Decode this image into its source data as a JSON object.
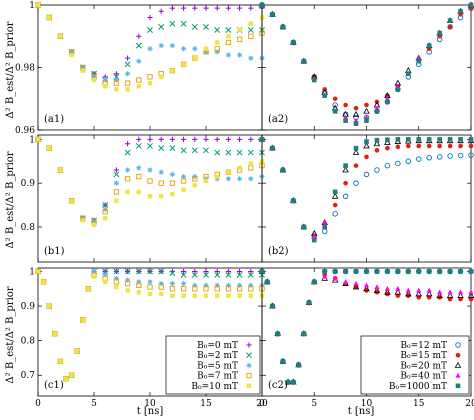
{
  "figure": {
    "ylabel": "Δ² B_est/Δ² B_prior",
    "xlabel": "t [ns]"
  },
  "x_tick_labels": [
    "0",
    "5",
    "10",
    "15",
    "20"
  ],
  "y_tick_labels": {
    "a": [
      "1",
      "0.98",
      "0.96"
    ],
    "b": [
      "1",
      "0.9",
      "0.8"
    ],
    "c": [
      "1",
      "0.9",
      "0.8",
      "0.7"
    ]
  },
  "legend_left": {
    "entries": [
      {
        "label": "B₀=0 mT",
        "marker": "plus",
        "color": "#9400d3"
      },
      {
        "label": "B₀=2 mT",
        "marker": "x",
        "color": "#009e73"
      },
      {
        "label": "B₀=5 mT",
        "marker": "star",
        "color": "#56b4e9"
      },
      {
        "label": "B₀=7 mT",
        "marker": "square-open",
        "color": "#e69f00"
      },
      {
        "label": "B₀=10 mT",
        "marker": "square-filled",
        "color": "#f0e442"
      }
    ]
  },
  "legend_right": {
    "entries": [
      {
        "label": "B₀=12 mT",
        "marker": "circle-open",
        "color": "#0072b2"
      },
      {
        "label": "B₀=15 mT",
        "marker": "circle-filled",
        "color": "#e51e10"
      },
      {
        "label": "B₀=20 mT",
        "marker": "triangle-open",
        "color": "#000000"
      },
      {
        "label": "B₀=40 mT",
        "marker": "triangle-filled",
        "color": "#ff00ff"
      },
      {
        "label": "B₀=1000 mT",
        "marker": "square-dark",
        "color": "#1f7f7f"
      }
    ]
  },
  "chart_data": [
    {
      "type": "scatter",
      "panel_label": "(a1)",
      "xlim": [
        0,
        20
      ],
      "ylim": [
        0.96,
        1
      ],
      "x": [
        0,
        1,
        2,
        3,
        4,
        5,
        6,
        7,
        8,
        9,
        10,
        11,
        12,
        13,
        14,
        15,
        16,
        17,
        18,
        19,
        20
      ],
      "series": [
        {
          "legend": "B₀=0 mT",
          "values": [
            1,
            0.996,
            0.99,
            0.985,
            0.98,
            0.978,
            0.977,
            0.978,
            0.983,
            0.99,
            0.996,
            0.998,
            0.999,
            0.999,
            0.999,
            0.999,
            0.999,
            0.999,
            0.999,
            0.999,
            0.999
          ]
        },
        {
          "legend": "B₀=2 mT",
          "values": [
            1,
            0.996,
            0.99,
            0.985,
            0.98,
            0.978,
            0.976,
            0.977,
            0.981,
            0.987,
            0.992,
            0.993,
            0.994,
            0.994,
            0.993,
            0.993,
            0.992,
            0.992,
            0.992,
            0.992,
            0.992
          ]
        },
        {
          "legend": "B₀=5 mT",
          "values": [
            1,
            0.996,
            0.99,
            0.985,
            0.98,
            0.977,
            0.976,
            0.976,
            0.978,
            0.982,
            0.986,
            0.987,
            0.987,
            0.986,
            0.986,
            0.985,
            0.985,
            0.984,
            0.984,
            0.983,
            0.983
          ]
        },
        {
          "legend": "B₀=7 mT",
          "values": [
            1,
            0.996,
            0.99,
            0.985,
            0.98,
            0.977,
            0.975,
            0.975,
            0.975,
            0.976,
            0.977,
            0.978,
            0.979,
            0.981,
            0.983,
            0.985,
            0.986,
            0.988,
            0.989,
            0.99,
            0.991
          ]
        },
        {
          "legend": "B₀=10 mT",
          "values": [
            1,
            0.996,
            0.99,
            0.984,
            0.979,
            0.976,
            0.974,
            0.973,
            0.973,
            0.974,
            0.975,
            0.977,
            0.979,
            0.981,
            0.983,
            0.986,
            0.988,
            0.99,
            0.992,
            0.994,
            0.996
          ]
        }
      ]
    },
    {
      "type": "scatter",
      "panel_label": "(a2)",
      "xlim": [
        0,
        20
      ],
      "ylim": [
        0.96,
        1
      ],
      "x": [
        0,
        1,
        2,
        3,
        4,
        5,
        6,
        7,
        8,
        9,
        10,
        11,
        12,
        13,
        14,
        15,
        16,
        17,
        18,
        19,
        20
      ],
      "series": [
        {
          "legend": "B₀=12 mT",
          "values": [
            1,
            0.997,
            0.993,
            0.988,
            0.982,
            0.977,
            0.972,
            0.968,
            0.965,
            0.964,
            0.964,
            0.966,
            0.969,
            0.973,
            0.977,
            0.981,
            0.985,
            0.989,
            0.993,
            0.996,
            0.999
          ]
        },
        {
          "legend": "B₀=15 mT",
          "values": [
            1,
            0.997,
            0.993,
            0.988,
            0.982,
            0.977,
            0.973,
            0.97,
            0.968,
            0.967,
            0.968,
            0.969,
            0.971,
            0.974,
            0.978,
            0.982,
            0.986,
            0.99,
            0.993,
            0.997,
            0.999
          ]
        },
        {
          "legend": "B₀=20 mT",
          "values": [
            1,
            0.997,
            0.993,
            0.988,
            0.982,
            0.977,
            0.972,
            0.967,
            0.965,
            0.965,
            0.966,
            0.968,
            0.971,
            0.975,
            0.979,
            0.983,
            0.987,
            0.991,
            0.995,
            0.998,
            1
          ]
        },
        {
          "legend": "B₀=40 mT",
          "values": [
            1,
            0.997,
            0.993,
            0.988,
            0.982,
            0.976,
            0.971,
            0.966,
            0.964,
            0.963,
            0.964,
            0.967,
            0.97,
            0.974,
            0.978,
            0.983,
            0.987,
            0.991,
            0.995,
            0.998,
            1
          ]
        },
        {
          "legend": "B₀=1000 mT",
          "values": [
            1,
            0.997,
            0.993,
            0.988,
            0.982,
            0.976,
            0.971,
            0.966,
            0.963,
            0.962,
            0.963,
            0.966,
            0.969,
            0.973,
            0.978,
            0.982,
            0.987,
            0.991,
            0.995,
            0.998,
            1
          ]
        }
      ]
    },
    {
      "type": "scatter",
      "panel_label": "(b1)",
      "xlim": [
        0,
        20
      ],
      "ylim": [
        0.72,
        1.01
      ],
      "x": [
        0,
        1,
        2,
        3,
        4,
        5,
        6,
        7,
        8,
        9,
        10,
        11,
        12,
        13,
        14,
        15,
        16,
        17,
        18,
        19,
        20
      ],
      "series": [
        {
          "legend": "B₀=0 mT",
          "values": [
            1,
            0.98,
            0.93,
            0.86,
            0.82,
            0.815,
            0.85,
            0.93,
            0.99,
            1,
            1,
            1,
            1,
            1,
            1,
            1,
            1,
            1,
            1,
            1,
            1
          ]
        },
        {
          "legend": "B₀=2 mT",
          "values": [
            1,
            0.98,
            0.93,
            0.86,
            0.82,
            0.815,
            0.85,
            0.92,
            0.97,
            0.985,
            0.985,
            0.98,
            0.98,
            0.975,
            0.975,
            0.975,
            0.97,
            0.97,
            0.97,
            0.97,
            0.97
          ]
        },
        {
          "legend": "B₀=5 mT",
          "values": [
            1,
            0.98,
            0.93,
            0.86,
            0.82,
            0.812,
            0.84,
            0.9,
            0.93,
            0.935,
            0.93,
            0.925,
            0.92,
            0.915,
            0.915,
            0.91,
            0.91,
            0.91,
            0.91,
            0.91,
            0.915
          ]
        },
        {
          "legend": "B₀=7 mT",
          "values": [
            1,
            0.98,
            0.93,
            0.86,
            0.82,
            0.81,
            0.835,
            0.88,
            0.91,
            0.915,
            0.905,
            0.9,
            0.9,
            0.905,
            0.91,
            0.915,
            0.92,
            0.925,
            0.93,
            0.935,
            0.94
          ]
        },
        {
          "legend": "B₀=10 mT",
          "values": [
            1,
            0.98,
            0.93,
            0.86,
            0.815,
            0.805,
            0.82,
            0.86,
            0.88,
            0.88,
            0.87,
            0.87,
            0.875,
            0.885,
            0.895,
            0.905,
            0.915,
            0.925,
            0.935,
            0.945,
            0.95
          ]
        }
      ]
    },
    {
      "type": "scatter",
      "panel_label": "(b2)",
      "xlim": [
        0,
        20
      ],
      "ylim": [
        0.72,
        1.01
      ],
      "x": [
        0,
        1,
        2,
        3,
        4,
        5,
        6,
        7,
        8,
        9,
        10,
        11,
        12,
        13,
        14,
        15,
        16,
        17,
        18,
        19,
        20
      ],
      "series": [
        {
          "legend": "B₀=12 mT",
          "values": [
            1,
            0.98,
            0.93,
            0.86,
            0.8,
            0.775,
            0.79,
            0.83,
            0.87,
            0.9,
            0.92,
            0.93,
            0.94,
            0.945,
            0.95,
            0.955,
            0.958,
            0.96,
            0.962,
            0.963,
            0.964
          ]
        },
        {
          "legend": "B₀=15 mT",
          "values": [
            1,
            0.98,
            0.93,
            0.86,
            0.8,
            0.78,
            0.8,
            0.85,
            0.9,
            0.94,
            0.96,
            0.975,
            0.98,
            0.983,
            0.985,
            0.985,
            0.985,
            0.985,
            0.985,
            0.985,
            0.985
          ]
        },
        {
          "legend": "B₀=20 mT",
          "values": [
            1,
            0.98,
            0.93,
            0.86,
            0.8,
            0.785,
            0.81,
            0.87,
            0.93,
            0.97,
            0.985,
            0.99,
            0.993,
            0.995,
            0.996,
            0.997,
            0.997,
            0.997,
            0.997,
            0.997,
            0.997
          ]
        },
        {
          "legend": "B₀=40 mT",
          "values": [
            1,
            0.98,
            0.93,
            0.86,
            0.8,
            0.78,
            0.81,
            0.88,
            0.94,
            0.98,
            0.995,
            0.998,
            0.999,
            1,
            1,
            1,
            1,
            1,
            1,
            1,
            1
          ]
        },
        {
          "legend": "B₀=1000 mT",
          "values": [
            1,
            0.98,
            0.93,
            0.86,
            0.8,
            0.77,
            0.8,
            0.88,
            0.94,
            0.98,
            0.995,
            0.998,
            0.999,
            1,
            1,
            1,
            1,
            1,
            1,
            1,
            1
          ]
        }
      ]
    },
    {
      "type": "scatter",
      "panel_label": "(c1)",
      "xlim": [
        0,
        20
      ],
      "ylim": [
        0.64,
        1.01
      ],
      "x": [
        0,
        0.5,
        1,
        1.5,
        2,
        2.5,
        3,
        3.5,
        4,
        4.5,
        5,
        6,
        7,
        8,
        9,
        10,
        11,
        12,
        13,
        14,
        15,
        16,
        17,
        18,
        19,
        20
      ],
      "series": [
        {
          "legend": "B₀=0 mT",
          "values": [
            1,
            0.97,
            0.9,
            0.82,
            0.74,
            0.69,
            0.7,
            0.77,
            0.86,
            0.95,
            1,
            1,
            1,
            1,
            1,
            1,
            1,
            1,
            1,
            1,
            1,
            1,
            1,
            1,
            1,
            1
          ]
        },
        {
          "legend": "B₀=2 mT",
          "values": [
            1,
            0.97,
            0.9,
            0.82,
            0.74,
            0.69,
            0.7,
            0.77,
            0.86,
            0.95,
            1,
            1,
            1,
            1,
            1,
            1,
            1,
            0.995,
            0.99,
            0.99,
            0.99,
            0.99,
            0.99,
            0.99,
            0.99,
            0.99
          ]
        },
        {
          "legend": "B₀=5 mT",
          "values": [
            1,
            0.97,
            0.9,
            0.82,
            0.74,
            0.69,
            0.7,
            0.77,
            0.86,
            0.95,
            1,
            0.99,
            0.98,
            0.975,
            0.97,
            0.97,
            0.965,
            0.965,
            0.965,
            0.96,
            0.96,
            0.96,
            0.96,
            0.96,
            0.96,
            0.96
          ]
        },
        {
          "legend": "B₀=7 mT",
          "values": [
            1,
            0.97,
            0.9,
            0.82,
            0.74,
            0.69,
            0.7,
            0.77,
            0.86,
            0.95,
            0.99,
            0.98,
            0.97,
            0.965,
            0.96,
            0.955,
            0.955,
            0.95,
            0.95,
            0.95,
            0.95,
            0.95,
            0.95,
            0.95,
            0.95,
            0.95
          ]
        },
        {
          "legend": "B₀=10 mT",
          "values": [
            1,
            0.97,
            0.9,
            0.82,
            0.74,
            0.69,
            0.7,
            0.77,
            0.86,
            0.95,
            0.985,
            0.97,
            0.955,
            0.945,
            0.94,
            0.935,
            0.935,
            0.93,
            0.93,
            0.93,
            0.93,
            0.93,
            0.93,
            0.93,
            0.93,
            0.93
          ]
        }
      ]
    },
    {
      "type": "scatter",
      "panel_label": "(c2)",
      "xlim": [
        0,
        20
      ],
      "ylim": [
        0.64,
        1.01
      ],
      "x": [
        0,
        0.5,
        1,
        1.5,
        2,
        2.5,
        3,
        3.5,
        4,
        4.5,
        5,
        6,
        7,
        8,
        9,
        10,
        11,
        12,
        13,
        14,
        15,
        16,
        17,
        18,
        19,
        20
      ],
      "series": [
        {
          "legend": "B₀=12 mT",
          "values": [
            1,
            0.97,
            0.9,
            0.82,
            0.74,
            0.68,
            0.68,
            0.73,
            0.82,
            0.91,
            0.97,
            1,
            1,
            1,
            1,
            1,
            1,
            1,
            1,
            1,
            1,
            1,
            1,
            1,
            1,
            1
          ]
        },
        {
          "legend": "B₀=15 mT",
          "values": [
            1,
            0.97,
            0.9,
            0.82,
            0.74,
            0.68,
            0.68,
            0.73,
            0.82,
            0.91,
            0.97,
            0.99,
            0.98,
            0.965,
            0.955,
            0.945,
            0.94,
            0.935,
            0.93,
            0.93,
            0.925,
            0.925,
            0.925,
            0.92,
            0.92,
            0.92
          ]
        },
        {
          "legend": "B₀=20 mT",
          "values": [
            1,
            0.97,
            0.9,
            0.82,
            0.74,
            0.68,
            0.68,
            0.73,
            0.82,
            0.91,
            0.97,
            0.98,
            0.975,
            0.965,
            0.955,
            0.95,
            0.945,
            0.94,
            0.94,
            0.935,
            0.935,
            0.935,
            0.93,
            0.93,
            0.93,
            0.93
          ]
        },
        {
          "legend": "B₀=40 mT",
          "values": [
            1,
            0.97,
            0.9,
            0.82,
            0.74,
            0.68,
            0.68,
            0.73,
            0.82,
            0.91,
            0.97,
            0.985,
            0.98,
            0.97,
            0.965,
            0.96,
            0.955,
            0.95,
            0.95,
            0.945,
            0.945,
            0.945,
            0.94,
            0.94,
            0.94,
            0.94
          ]
        },
        {
          "legend": "B₀=1000 mT",
          "values": [
            1,
            0.97,
            0.9,
            0.82,
            0.74,
            0.68,
            0.68,
            0.73,
            0.82,
            0.91,
            0.97,
            1,
            1,
            1,
            1,
            1,
            1,
            1,
            1,
            1,
            1,
            1,
            1,
            1,
            1,
            1
          ]
        }
      ]
    }
  ]
}
